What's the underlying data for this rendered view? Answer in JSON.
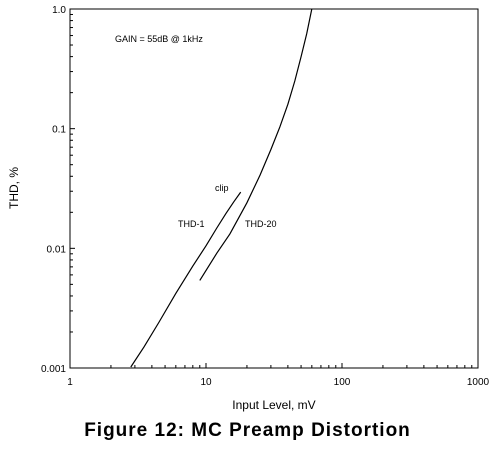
{
  "chart_data": {
    "type": "line",
    "title": "Figure 12: MC Preamp Distortion",
    "xlabel": "Input Level, mV",
    "ylabel": "THD, %",
    "xscale": "log",
    "yscale": "log",
    "xlim": [
      1,
      1000
    ],
    "ylim": [
      0.001,
      1.0
    ],
    "x_ticks": [
      1,
      10,
      100,
      1000
    ],
    "x_tick_labels": [
      "1",
      "10",
      "100",
      "1000"
    ],
    "y_ticks": [
      0.001,
      0.01,
      0.1,
      1.0
    ],
    "y_tick_labels": [
      "0.001",
      "0.01",
      "0.1",
      "1.0"
    ],
    "grid": false,
    "series": [
      {
        "name": "THD-1",
        "x": [
          2.8,
          3.5,
          4.5,
          6.0,
          8.0,
          10.0,
          12.0,
          14.0,
          16.0,
          18.0
        ],
        "y": [
          0.00102,
          0.0015,
          0.0024,
          0.0042,
          0.0071,
          0.0105,
          0.0148,
          0.0195,
          0.0245,
          0.0295
        ]
      },
      {
        "name": "THD-20",
        "x": [
          9.0,
          12.0,
          15.0,
          20.0,
          25.0,
          30.0,
          35.0,
          40.0,
          45.0,
          50.0,
          55.0,
          60.0
        ],
        "y": [
          0.0054,
          0.0091,
          0.0132,
          0.024,
          0.041,
          0.067,
          0.104,
          0.16,
          0.25,
          0.4,
          0.62,
          1.0
        ]
      }
    ],
    "annotations": {
      "gain": "GAIN = 55dB @ 1kHz",
      "clip": "clip",
      "thd1": "THD-1",
      "thd20": "THD-20"
    }
  },
  "colors": {
    "line": "#000000",
    "background": "#ffffff"
  }
}
